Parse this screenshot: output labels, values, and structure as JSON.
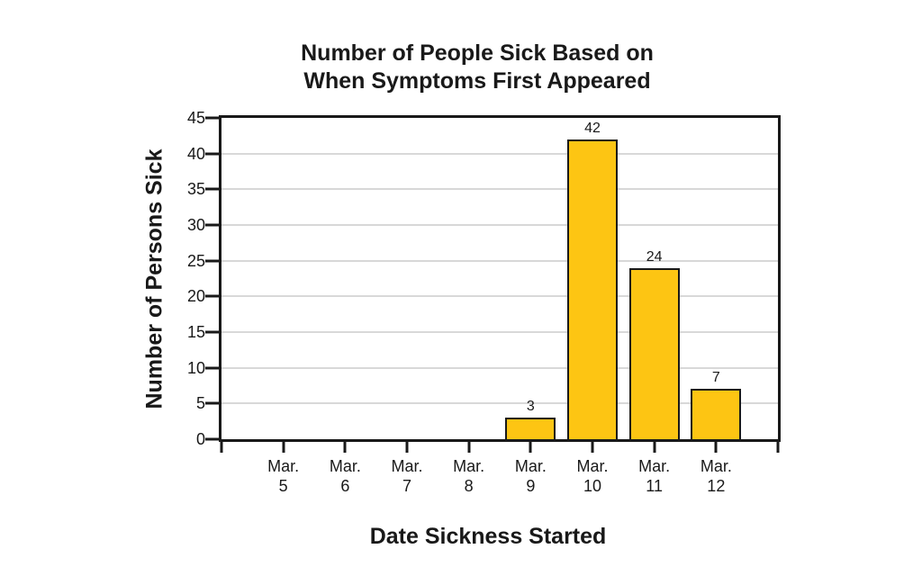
{
  "page": {
    "background": "#FFFFFF"
  },
  "chart_data": {
    "type": "bar",
    "title": "Number of People Sick Based on When Symptoms First Appeared",
    "title_lines": [
      "Number of People Sick Based on",
      "When Symptoms First Appeared"
    ],
    "xlabel": "Date Sickness Started",
    "ylabel": "Number of Persons Sick",
    "categories": [
      "Mar. 5",
      "Mar. 6",
      "Mar. 7",
      "Mar. 8",
      "Mar. 9",
      "Mar. 10",
      "Mar. 11",
      "Mar. 12"
    ],
    "category_label_lines": [
      [
        "Mar.",
        "5"
      ],
      [
        "Mar.",
        "6"
      ],
      [
        "Mar.",
        "7"
      ],
      [
        "Mar.",
        "8"
      ],
      [
        "Mar.",
        "9"
      ],
      [
        "Mar.",
        "10"
      ],
      [
        "Mar.",
        "11"
      ],
      [
        "Mar.",
        "12"
      ]
    ],
    "values": [
      0,
      0,
      0,
      0,
      3,
      42,
      24,
      7
    ],
    "data_labels": [
      "",
      "",
      "",
      "",
      "3",
      "42",
      "24",
      "7"
    ],
    "ylim": [
      0,
      45
    ],
    "y_ticks": [
      0,
      5,
      10,
      15,
      20,
      25,
      30,
      35,
      40,
      45
    ],
    "grid": "horizontal",
    "legend": "none",
    "colors": {
      "bar_fill": "#FDC513",
      "bar_stroke": "#191919",
      "axis": "#191919",
      "gridline": "#D8D8D8",
      "text": "#191919",
      "background": "#FFFFFF"
    }
  }
}
